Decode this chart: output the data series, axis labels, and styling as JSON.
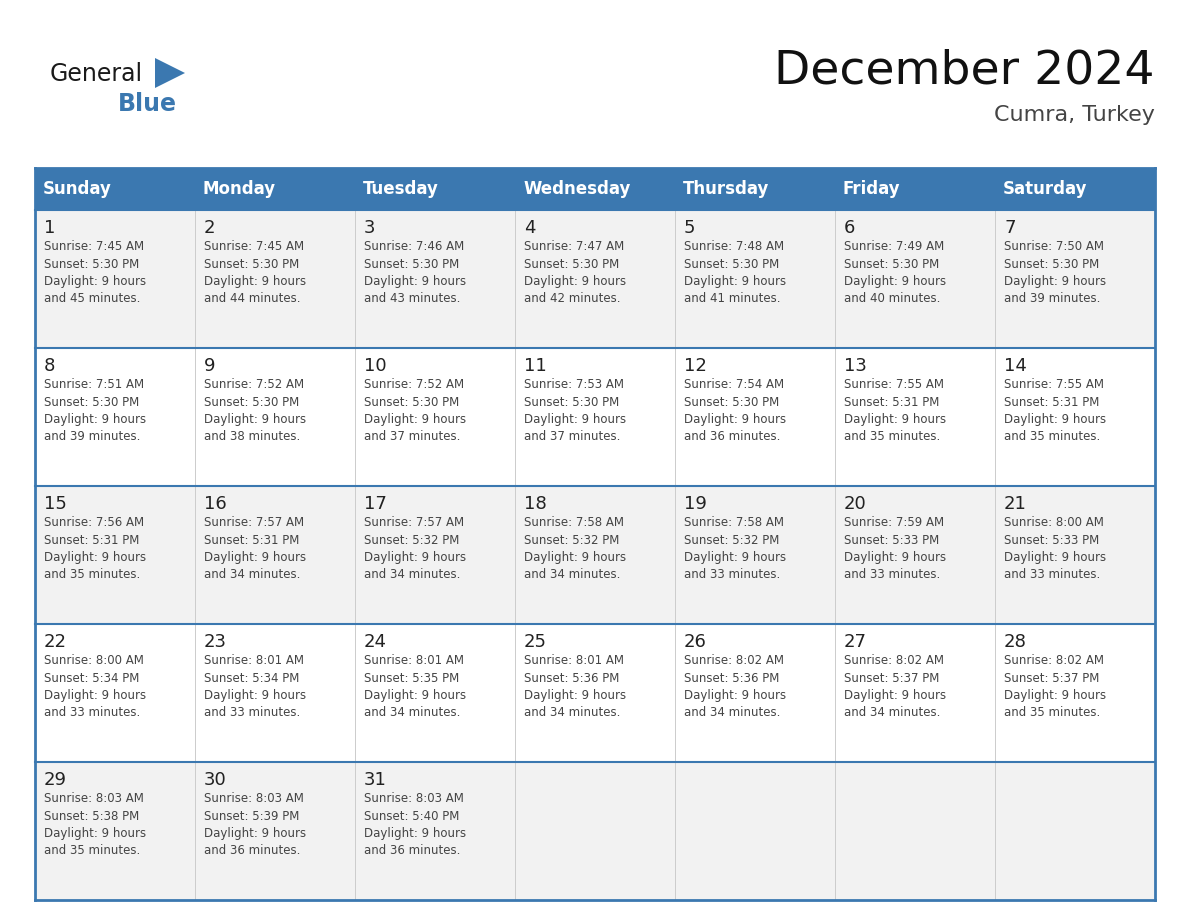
{
  "title": "December 2024",
  "subtitle": "Cumra, Turkey",
  "header_bg": "#3b78b0",
  "header_text_color": "#ffffff",
  "row_bg_odd": "#f2f2f2",
  "row_bg_even": "#ffffff",
  "border_color": "#3b78b0",
  "text_color": "#444444",
  "day_num_color": "#222222",
  "days_of_week": [
    "Sunday",
    "Monday",
    "Tuesday",
    "Wednesday",
    "Thursday",
    "Friday",
    "Saturday"
  ],
  "weeks": [
    [
      {
        "day": 1,
        "sunrise": "7:45 AM",
        "sunset": "5:30 PM",
        "daylight_line1": "9 hours",
        "daylight_line2": "and 45 minutes."
      },
      {
        "day": 2,
        "sunrise": "7:45 AM",
        "sunset": "5:30 PM",
        "daylight_line1": "9 hours",
        "daylight_line2": "and 44 minutes."
      },
      {
        "day": 3,
        "sunrise": "7:46 AM",
        "sunset": "5:30 PM",
        "daylight_line1": "9 hours",
        "daylight_line2": "and 43 minutes."
      },
      {
        "day": 4,
        "sunrise": "7:47 AM",
        "sunset": "5:30 PM",
        "daylight_line1": "9 hours",
        "daylight_line2": "and 42 minutes."
      },
      {
        "day": 5,
        "sunrise": "7:48 AM",
        "sunset": "5:30 PM",
        "daylight_line1": "9 hours",
        "daylight_line2": "and 41 minutes."
      },
      {
        "day": 6,
        "sunrise": "7:49 AM",
        "sunset": "5:30 PM",
        "daylight_line1": "9 hours",
        "daylight_line2": "and 40 minutes."
      },
      {
        "day": 7,
        "sunrise": "7:50 AM",
        "sunset": "5:30 PM",
        "daylight_line1": "9 hours",
        "daylight_line2": "and 39 minutes."
      }
    ],
    [
      {
        "day": 8,
        "sunrise": "7:51 AM",
        "sunset": "5:30 PM",
        "daylight_line1": "9 hours",
        "daylight_line2": "and 39 minutes."
      },
      {
        "day": 9,
        "sunrise": "7:52 AM",
        "sunset": "5:30 PM",
        "daylight_line1": "9 hours",
        "daylight_line2": "and 38 minutes."
      },
      {
        "day": 10,
        "sunrise": "7:52 AM",
        "sunset": "5:30 PM",
        "daylight_line1": "9 hours",
        "daylight_line2": "and 37 minutes."
      },
      {
        "day": 11,
        "sunrise": "7:53 AM",
        "sunset": "5:30 PM",
        "daylight_line1": "9 hours",
        "daylight_line2": "and 37 minutes."
      },
      {
        "day": 12,
        "sunrise": "7:54 AM",
        "sunset": "5:30 PM",
        "daylight_line1": "9 hours",
        "daylight_line2": "and 36 minutes."
      },
      {
        "day": 13,
        "sunrise": "7:55 AM",
        "sunset": "5:31 PM",
        "daylight_line1": "9 hours",
        "daylight_line2": "and 35 minutes."
      },
      {
        "day": 14,
        "sunrise": "7:55 AM",
        "sunset": "5:31 PM",
        "daylight_line1": "9 hours",
        "daylight_line2": "and 35 minutes."
      }
    ],
    [
      {
        "day": 15,
        "sunrise": "7:56 AM",
        "sunset": "5:31 PM",
        "daylight_line1": "9 hours",
        "daylight_line2": "and 35 minutes."
      },
      {
        "day": 16,
        "sunrise": "7:57 AM",
        "sunset": "5:31 PM",
        "daylight_line1": "9 hours",
        "daylight_line2": "and 34 minutes."
      },
      {
        "day": 17,
        "sunrise": "7:57 AM",
        "sunset": "5:32 PM",
        "daylight_line1": "9 hours",
        "daylight_line2": "and 34 minutes."
      },
      {
        "day": 18,
        "sunrise": "7:58 AM",
        "sunset": "5:32 PM",
        "daylight_line1": "9 hours",
        "daylight_line2": "and 34 minutes."
      },
      {
        "day": 19,
        "sunrise": "7:58 AM",
        "sunset": "5:32 PM",
        "daylight_line1": "9 hours",
        "daylight_line2": "and 33 minutes."
      },
      {
        "day": 20,
        "sunrise": "7:59 AM",
        "sunset": "5:33 PM",
        "daylight_line1": "9 hours",
        "daylight_line2": "and 33 minutes."
      },
      {
        "day": 21,
        "sunrise": "8:00 AM",
        "sunset": "5:33 PM",
        "daylight_line1": "9 hours",
        "daylight_line2": "and 33 minutes."
      }
    ],
    [
      {
        "day": 22,
        "sunrise": "8:00 AM",
        "sunset": "5:34 PM",
        "daylight_line1": "9 hours",
        "daylight_line2": "and 33 minutes."
      },
      {
        "day": 23,
        "sunrise": "8:01 AM",
        "sunset": "5:34 PM",
        "daylight_line1": "9 hours",
        "daylight_line2": "and 33 minutes."
      },
      {
        "day": 24,
        "sunrise": "8:01 AM",
        "sunset": "5:35 PM",
        "daylight_line1": "9 hours",
        "daylight_line2": "and 34 minutes."
      },
      {
        "day": 25,
        "sunrise": "8:01 AM",
        "sunset": "5:36 PM",
        "daylight_line1": "9 hours",
        "daylight_line2": "and 34 minutes."
      },
      {
        "day": 26,
        "sunrise": "8:02 AM",
        "sunset": "5:36 PM",
        "daylight_line1": "9 hours",
        "daylight_line2": "and 34 minutes."
      },
      {
        "day": 27,
        "sunrise": "8:02 AM",
        "sunset": "5:37 PM",
        "daylight_line1": "9 hours",
        "daylight_line2": "and 34 minutes."
      },
      {
        "day": 28,
        "sunrise": "8:02 AM",
        "sunset": "5:37 PM",
        "daylight_line1": "9 hours",
        "daylight_line2": "and 35 minutes."
      }
    ],
    [
      {
        "day": 29,
        "sunrise": "8:03 AM",
        "sunset": "5:38 PM",
        "daylight_line1": "9 hours",
        "daylight_line2": "and 35 minutes."
      },
      {
        "day": 30,
        "sunrise": "8:03 AM",
        "sunset": "5:39 PM",
        "daylight_line1": "9 hours",
        "daylight_line2": "and 36 minutes."
      },
      {
        "day": 31,
        "sunrise": "8:03 AM",
        "sunset": "5:40 PM",
        "daylight_line1": "9 hours",
        "daylight_line2": "and 36 minutes."
      },
      null,
      null,
      null,
      null
    ]
  ],
  "logo_text_general": "General",
  "logo_text_blue": "Blue",
  "logo_color_general": "#1a1a1a",
  "logo_color_blue": "#3b78b0",
  "title_fontsize": 34,
  "subtitle_fontsize": 16,
  "day_header_fontsize": 12,
  "day_num_fontsize": 13,
  "cell_text_fontsize": 8.5
}
